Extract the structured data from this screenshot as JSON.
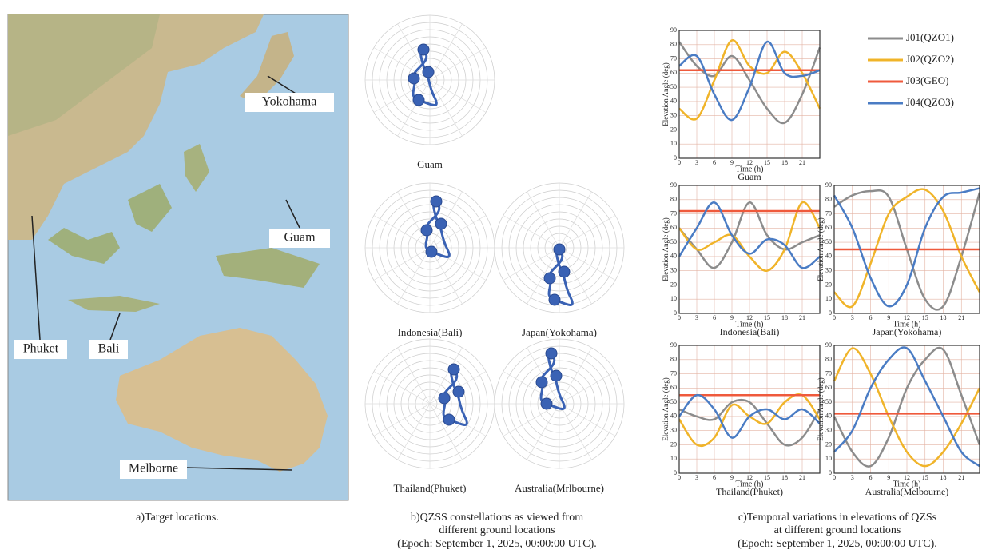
{
  "map": {
    "labels": [
      "Yokohama",
      "Guam",
      "Phuket",
      "Bali",
      "Melborne"
    ],
    "caption": "a)Target locations."
  },
  "polar": {
    "labels": [
      "Guam",
      "Indonesia(Bali)",
      "Japan(Yokohama)",
      "Thailand(Phuket)",
      "Australia(Mrlbourne)"
    ],
    "caption": [
      "b)QZSS constellations as viewed from",
      "different ground locations",
      "(Epoch: September 1, 2025, 00:00:00 UTC)."
    ]
  },
  "chart_data": [
    {
      "type": "line",
      "title": "Guam",
      "xlabel": "Time (h)",
      "ylabel": "Elevation Angle (deg)",
      "x": [
        0,
        3,
        6,
        9,
        12,
        15,
        18,
        21,
        24
      ],
      "xlim": [
        0,
        24
      ],
      "ylim": [
        0,
        90
      ],
      "xticks": [
        0,
        3,
        6,
        9,
        12,
        15,
        18,
        21
      ],
      "yticks": [
        0,
        10,
        20,
        30,
        40,
        50,
        60,
        70,
        80,
        90
      ],
      "grid": true,
      "series": [
        {
          "name": "J01(QZO1)",
          "color": "#8c8c8c",
          "values": [
            82,
            65,
            58,
            72,
            55,
            35,
            25,
            45,
            78
          ]
        },
        {
          "name": "J02(QZO2)",
          "color": "#f0b429",
          "values": [
            35,
            28,
            55,
            83,
            65,
            60,
            75,
            60,
            35
          ]
        },
        {
          "name": "J03(GEO)",
          "color": "#ef5a3c",
          "values": [
            62,
            62,
            62,
            62,
            62,
            62,
            62,
            62,
            62
          ]
        },
        {
          "name": "J04(QZO3)",
          "color": "#4a7cc4",
          "values": [
            65,
            72,
            45,
            27,
            50,
            82,
            60,
            58,
            62
          ]
        }
      ]
    },
    {
      "type": "line",
      "title": "Indonesia(Bali)",
      "xlabel": "Time (h)",
      "ylabel": "Elevation Angle (deg)",
      "x": [
        0,
        3,
        6,
        9,
        12,
        15,
        18,
        21,
        24
      ],
      "xlim": [
        0,
        24
      ],
      "ylim": [
        0,
        90
      ],
      "xticks": [
        0,
        3,
        6,
        9,
        12,
        15,
        18,
        21
      ],
      "yticks": [
        0,
        10,
        20,
        30,
        40,
        50,
        60,
        70,
        80,
        90
      ],
      "grid": true,
      "series": [
        {
          "color": "#8c8c8c",
          "values": [
            60,
            45,
            32,
            50,
            78,
            55,
            45,
            50,
            55
          ]
        },
        {
          "color": "#f0b429",
          "values": [
            60,
            45,
            50,
            55,
            40,
            30,
            45,
            78,
            60
          ]
        },
        {
          "color": "#ef5a3c",
          "values": [
            72,
            72,
            72,
            72,
            72,
            72,
            72,
            72,
            72
          ]
        },
        {
          "color": "#4a7cc4",
          "values": [
            40,
            60,
            78,
            55,
            42,
            52,
            48,
            32,
            40
          ]
        }
      ]
    },
    {
      "type": "line",
      "title": "Japan(Yokohama)",
      "xlabel": "Time (h)",
      "ylabel": "Elevation Angle (deg)",
      "x": [
        0,
        3,
        6,
        9,
        12,
        15,
        18,
        21,
        24
      ],
      "xlim": [
        0,
        24
      ],
      "ylim": [
        0,
        90
      ],
      "xticks": [
        0,
        3,
        6,
        9,
        12,
        15,
        18,
        21
      ],
      "yticks": [
        0,
        10,
        20,
        30,
        40,
        50,
        60,
        70,
        80,
        90
      ],
      "grid": true,
      "series": [
        {
          "color": "#8c8c8c",
          "values": [
            75,
            83,
            86,
            82,
            45,
            10,
            5,
            40,
            85
          ]
        },
        {
          "color": "#f0b429",
          "values": [
            15,
            5,
            35,
            70,
            82,
            87,
            72,
            40,
            15
          ]
        },
        {
          "color": "#ef5a3c",
          "values": [
            45,
            45,
            45,
            45,
            45,
            45,
            45,
            45,
            45
          ]
        },
        {
          "color": "#4a7cc4",
          "values": [
            83,
            60,
            25,
            5,
            20,
            60,
            82,
            85,
            88
          ]
        }
      ]
    },
    {
      "type": "line",
      "title": "Thailand(Phuket)",
      "xlabel": "Time (h)",
      "ylabel": "Elevation Angle (deg)",
      "x": [
        0,
        3,
        6,
        9,
        12,
        15,
        18,
        21,
        24
      ],
      "xlim": [
        0,
        24
      ],
      "ylim": [
        0,
        90
      ],
      "xticks": [
        0,
        3,
        6,
        9,
        12,
        15,
        18,
        21
      ],
      "yticks": [
        0,
        10,
        20,
        30,
        40,
        50,
        60,
        70,
        80,
        90
      ],
      "grid": true,
      "series": [
        {
          "color": "#8c8c8c",
          "values": [
            45,
            40,
            38,
            50,
            50,
            35,
            20,
            25,
            45
          ]
        },
        {
          "color": "#f0b429",
          "values": [
            38,
            20,
            25,
            48,
            40,
            35,
            50,
            55,
            38
          ]
        },
        {
          "color": "#ef5a3c",
          "values": [
            55,
            55,
            55,
            55,
            55,
            55,
            55,
            55,
            55
          ]
        },
        {
          "color": "#4a7cc4",
          "values": [
            40,
            55,
            45,
            25,
            40,
            45,
            38,
            45,
            35
          ]
        }
      ]
    },
    {
      "type": "line",
      "title": "Australia(Melbourne)",
      "xlabel": "Time (h)",
      "ylabel": "Elevation Angle (deg)",
      "x": [
        0,
        3,
        6,
        9,
        12,
        15,
        18,
        21,
        24
      ],
      "xlim": [
        0,
        24
      ],
      "ylim": [
        0,
        90
      ],
      "xticks": [
        0,
        3,
        6,
        9,
        12,
        15,
        18,
        21
      ],
      "yticks": [
        0,
        10,
        20,
        30,
        40,
        50,
        60,
        70,
        80,
        90
      ],
      "grid": true,
      "series": [
        {
          "color": "#8c8c8c",
          "values": [
            40,
            15,
            5,
            25,
            60,
            80,
            87,
            55,
            20
          ]
        },
        {
          "color": "#f0b429",
          "values": [
            65,
            88,
            70,
            40,
            15,
            5,
            15,
            35,
            60
          ]
        },
        {
          "color": "#ef5a3c",
          "values": [
            42,
            42,
            42,
            42,
            42,
            42,
            42,
            42,
            42
          ]
        },
        {
          "color": "#4a7cc4",
          "values": [
            15,
            30,
            60,
            80,
            88,
            65,
            40,
            15,
            5
          ]
        }
      ]
    }
  ],
  "caption": [
    "c)Temporal variations in elevations of QZSs",
    "at different ground locations",
    "(Epoch: September 1, 2025, 00:00:00 UTC)."
  ]
}
